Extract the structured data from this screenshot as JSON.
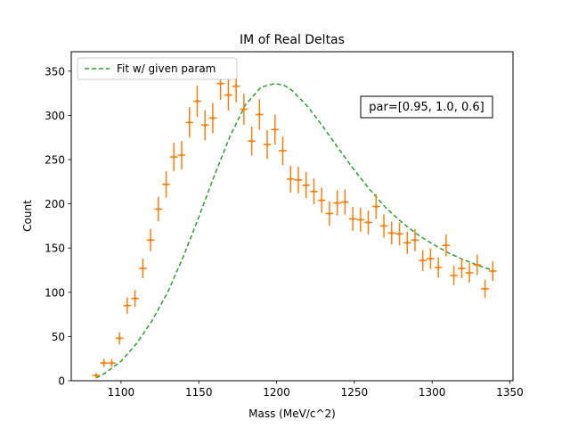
{
  "chart_data": {
    "type": "scatter",
    "title": "IM of Real Deltas",
    "xlabel": "Mass (MeV/c^2)",
    "ylabel": "Count",
    "xlim": [
      1068,
      1352
    ],
    "ylim": [
      0,
      372
    ],
    "xticks": [
      1100,
      1150,
      1200,
      1250,
      1300,
      1350
    ],
    "yticks": [
      0,
      50,
      100,
      150,
      200,
      250,
      300,
      350
    ],
    "grid": false,
    "legend": {
      "placement": "upper-left",
      "entries": [
        "Fit w/ given param"
      ]
    },
    "annotation": "par=[0.95, 1.0, 0.6]",
    "colors": {
      "data": "#ff7f0e",
      "fit": "#2ca02c"
    },
    "series": [
      {
        "kind": "errorbar",
        "x": [
          1084,
          1089,
          1094,
          1099,
          1104,
          1109,
          1114,
          1119,
          1124,
          1129,
          1134,
          1139,
          1144,
          1149,
          1154,
          1159,
          1164,
          1169,
          1174,
          1179,
          1184,
          1189,
          1194,
          1199,
          1204,
          1209,
          1214,
          1219,
          1224,
          1229,
          1234,
          1239,
          1244,
          1249,
          1254,
          1259,
          1264,
          1269,
          1274,
          1279,
          1284,
          1289,
          1294,
          1299,
          1304,
          1309,
          1314,
          1319,
          1324,
          1329,
          1334,
          1339
        ],
        "y": [
          6,
          20,
          20,
          48,
          85,
          93,
          127,
          159,
          194,
          222,
          253,
          255,
          292,
          316,
          289,
          297,
          336,
          323,
          333,
          307,
          271,
          301,
          267,
          284,
          260,
          228,
          227,
          221,
          214,
          204,
          189,
          201,
          202,
          183,
          182,
          179,
          197,
          175,
          167,
          166,
          156,
          159,
          136,
          138,
          128,
          153,
          119,
          127,
          122,
          131,
          104,
          124
        ]
      },
      {
        "kind": "line",
        "name": "Fit w/ given param",
        "x": [
          1084,
          1090,
          1100,
          1110,
          1120,
          1130,
          1140,
          1150,
          1160,
          1170,
          1180,
          1190,
          1199,
          1205,
          1210,
          1220,
          1230,
          1240,
          1250,
          1260,
          1270,
          1280,
          1290,
          1300,
          1310,
          1320,
          1330,
          1339
        ],
        "y": [
          3,
          9,
          22,
          42,
          68,
          100,
          140,
          185,
          232,
          276,
          312,
          332,
          336,
          334,
          328,
          310,
          287,
          262,
          238,
          216,
          196,
          180,
          166,
          155,
          145,
          137,
          130,
          125
        ]
      }
    ]
  }
}
